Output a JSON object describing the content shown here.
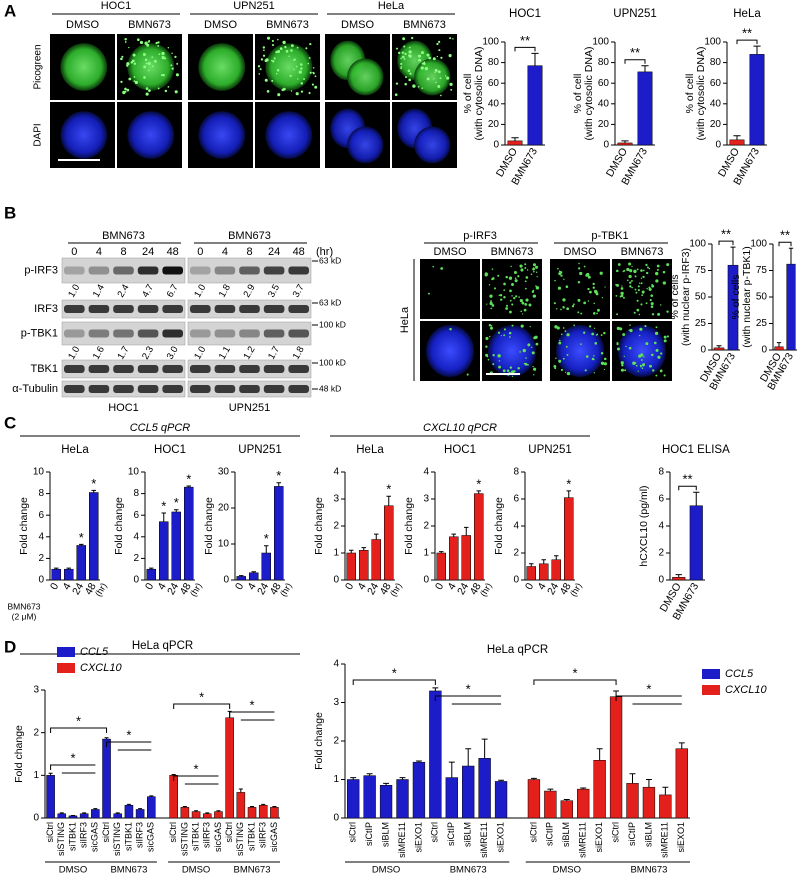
{
  "panel_labels": [
    "A",
    "B",
    "C",
    "D"
  ],
  "panel_a": {
    "cell_lines": [
      "HOC1",
      "UPN251",
      "HeLa"
    ],
    "treatments": [
      "DMSO",
      "BMN673"
    ],
    "stains": [
      "Picogreen",
      "DAPI"
    ]
  },
  "panel_b": {
    "blot": {
      "treatment": "BMN673",
      "timepoints": [
        "0",
        "4",
        "8",
        "24",
        "48"
      ],
      "unit": "(hr)",
      "cell_lines": [
        "HOC1",
        "UPN251"
      ],
      "proteins": [
        "p-IRF3",
        "IRF3",
        "p-TBK1",
        "TBK1",
        "α-Tubulin"
      ],
      "markers": [
        "63 kD",
        "63 kD",
        "100 kD",
        "100 kD",
        "48 kD"
      ],
      "p_irf3_quant": [
        [
          "1.0",
          "1.4",
          "2.4",
          "4.7",
          "6.7"
        ],
        [
          "1.0",
          "1.8",
          "2.9",
          "3.5",
          "3.7"
        ]
      ],
      "p_tbk1_quant": [
        [
          "1.0",
          "1.6",
          "1.7",
          "2.3",
          "3.0"
        ],
        [
          "1.0",
          "1.1",
          "1.2",
          "1.7",
          "1.8"
        ]
      ]
    },
    "images": {
      "stains": [
        "p-IRF3",
        "p-TBK1"
      ],
      "treatments": [
        "DMSO",
        "BMN673"
      ],
      "cell_line": "HeLa"
    }
  },
  "panel_c": {
    "headers": [
      "CCL5 qPCR",
      "CXCL10 qPCR"
    ]
  },
  "chart_data": [
    {
      "type": "bar",
      "title": "HOC1",
      "ylabel": [
        "% of cell",
        "(with cytosolic DNA)"
      ],
      "categories": [
        "DMSO",
        "BMN673"
      ],
      "values": [
        4,
        77
      ],
      "errors": [
        3,
        12
      ],
      "colors": [
        "#e3201b",
        "#1c1cc9"
      ],
      "ylim": [
        0,
        100
      ],
      "yticks": [
        0,
        20,
        40,
        60,
        80,
        100
      ],
      "annotation": "**"
    },
    {
      "type": "bar",
      "title": "UPN251",
      "ylabel": [
        "% of cell",
        "(with cytosolic DNA)"
      ],
      "categories": [
        "DMSO",
        "BMN673"
      ],
      "values": [
        2,
        71
      ],
      "errors": [
        2,
        6
      ],
      "colors": [
        "#e3201b",
        "#1c1cc9"
      ],
      "ylim": [
        0,
        100
      ],
      "yticks": [
        0,
        20,
        40,
        60,
        80,
        100
      ],
      "annotation": "**"
    },
    {
      "type": "bar",
      "title": "HeLa",
      "ylabel": [
        "% of cell",
        "(with cytosolic DNA)"
      ],
      "categories": [
        "DMSO",
        "BMN673"
      ],
      "values": [
        5,
        88
      ],
      "errors": [
        4,
        8
      ],
      "colors": [
        "#e3201b",
        "#1c1cc9"
      ],
      "ylim": [
        0,
        100
      ],
      "yticks": [
        0,
        20,
        40,
        60,
        80,
        100
      ],
      "annotation": "**"
    },
    {
      "type": "bar",
      "ylabel": [
        "% of cells",
        "(with nuclear p-IRF3)"
      ],
      "categories": [
        "DMSO",
        "BMN673"
      ],
      "values": [
        2,
        80
      ],
      "errors": [
        2,
        17
      ],
      "colors": [
        "#e3201b",
        "#1c1cc9"
      ],
      "ylim": [
        0,
        100
      ],
      "yticks": [
        0,
        25,
        50,
        75,
        100
      ],
      "annotation": "**"
    },
    {
      "type": "bar",
      "ylabel": [
        "% of cells",
        "(with nuclear p-TBK1)"
      ],
      "categories": [
        "DMSO",
        "BMN673"
      ],
      "values": [
        3,
        81
      ],
      "errors": [
        4,
        15
      ],
      "colors": [
        "#e3201b",
        "#1c1cc9"
      ],
      "ylim": [
        0,
        100
      ],
      "yticks": [
        0,
        25,
        50,
        75,
        100
      ],
      "annotation": "**"
    },
    {
      "type": "bar",
      "title": "HeLa",
      "ylabel": [
        "Fold change"
      ],
      "categories": [
        "0",
        "4",
        "24",
        "48"
      ],
      "values": [
        1,
        1,
        3.2,
        8.1
      ],
      "errors": [
        0.1,
        0.1,
        0.1,
        0.2
      ],
      "annotations": [
        null,
        null,
        "*",
        "*"
      ],
      "color": "#1c1cc9",
      "ylim": [
        0,
        10
      ],
      "yticks": [
        0,
        2,
        4,
        6,
        8,
        10
      ],
      "x_unit": "(hr)",
      "x_note": [
        "BMN673",
        "(2 μM)"
      ]
    },
    {
      "type": "bar",
      "title": "HOC1",
      "ylabel": [
        "Fold change"
      ],
      "categories": [
        "0",
        "4",
        "24",
        "48"
      ],
      "values": [
        1,
        5.4,
        6.3,
        8.6
      ],
      "errors": [
        0.1,
        0.8,
        0.2,
        0.1
      ],
      "annotations": [
        null,
        "*",
        "*",
        "*"
      ],
      "color": "#1c1cc9",
      "ylim": [
        0,
        10
      ],
      "yticks": [
        0,
        2,
        4,
        6,
        8,
        10
      ],
      "x_unit": "(hr)"
    },
    {
      "type": "bar",
      "title": "UPN251",
      "ylabel": [
        "Fold change"
      ],
      "categories": [
        "0",
        "4",
        "24",
        "48"
      ],
      "values": [
        1,
        2,
        7.5,
        26
      ],
      "errors": [
        0.2,
        0.3,
        2,
        1
      ],
      "annotations": [
        null,
        null,
        "*",
        "*"
      ],
      "color": "#1c1cc9",
      "ylim": [
        0,
        30
      ],
      "yticks": [
        0,
        10,
        20,
        30
      ],
      "x_unit": "(hr)"
    },
    {
      "type": "bar",
      "title": "HeLa",
      "ylabel": [
        "Fold change"
      ],
      "categories": [
        "0",
        "4",
        "24",
        "48"
      ],
      "values": [
        1,
        1.1,
        1.5,
        2.75
      ],
      "errors": [
        0.1,
        0.1,
        0.2,
        0.35
      ],
      "annotations": [
        null,
        null,
        null,
        "*"
      ],
      "color": "#e3201b",
      "ylim": [
        0,
        4
      ],
      "yticks": [
        0,
        1,
        2,
        3,
        4
      ],
      "x_unit": "(hr)"
    },
    {
      "type": "bar",
      "title": "HOC1",
      "ylabel": [
        "Fold change"
      ],
      "categories": [
        "0",
        "4",
        "24",
        "48"
      ],
      "values": [
        1,
        1.6,
        1.65,
        3.2
      ],
      "errors": [
        0.05,
        0.1,
        0.3,
        0.1
      ],
      "annotations": [
        null,
        null,
        null,
        "*"
      ],
      "color": "#e3201b",
      "ylim": [
        0,
        4
      ],
      "yticks": [
        0,
        1,
        2,
        3,
        4
      ],
      "x_unit": "(hr)"
    },
    {
      "type": "bar",
      "title": "UPN251",
      "ylabel": [
        "Fold change"
      ],
      "categories": [
        "0",
        "4",
        "24",
        "48"
      ],
      "values": [
        1,
        1.2,
        1.5,
        6.1
      ],
      "errors": [
        0.2,
        0.3,
        0.3,
        0.5
      ],
      "annotations": [
        null,
        null,
        null,
        "*"
      ],
      "color": "#e3201b",
      "ylim": [
        0,
        8
      ],
      "yticks": [
        0,
        2,
        4,
        6,
        8
      ],
      "x_unit": "(hr)"
    },
    {
      "type": "bar",
      "title": "HOC1  ELISA",
      "ylabel": [
        "hCXCL10 (pg/ml)"
      ],
      "categories": [
        "DMSO",
        "BMN673"
      ],
      "values": [
        0.2,
        5.5
      ],
      "errors": [
        0.2,
        1
      ],
      "colors": [
        "#e3201b",
        "#1c1cc9"
      ],
      "ylim": [
        0,
        8
      ],
      "yticks": [
        0,
        2,
        4,
        6,
        8
      ],
      "annotation": "**"
    },
    {
      "type": "bar",
      "title": "HeLa qPCR",
      "ylabel": [
        "Fold change"
      ],
      "legend": "upper left",
      "categories": [
        "siCtrl",
        "siSTING",
        "siTBK1",
        "siIRF3",
        "sicGAS",
        "siCtrl",
        "siSTING",
        "siTBK1",
        "siIRF3",
        "sicGAS"
      ],
      "groups": [
        "DMSO",
        "BMN673"
      ],
      "series": [
        {
          "name": "CCL5",
          "color": "#1c1cc9",
          "values": [
            1.0,
            0.1,
            0.05,
            0.1,
            0.2,
            1.85,
            0.1,
            0.3,
            0.2,
            0.5
          ],
          "errors": [
            0.05,
            0.02,
            0.01,
            0.02,
            0.02,
            0.03,
            0.02,
            0.02,
            0.02,
            0.02
          ]
        },
        {
          "name": "CXCL10",
          "color": "#e3201b",
          "values": [
            1.0,
            0.25,
            0.15,
            0.1,
            0.15,
            2.35,
            0.6,
            0.25,
            0.3,
            0.25
          ],
          "errors": [
            0.02,
            0.02,
            0.02,
            0.02,
            0.02,
            0.15,
            0.08,
            0.02,
            0.02,
            0.02
          ]
        }
      ],
      "brackets": [
        "*",
        "*",
        "*",
        "*",
        "*",
        "*"
      ],
      "ylim": [
        0,
        3
      ],
      "yticks": [
        0,
        1,
        2,
        3
      ]
    },
    {
      "type": "bar",
      "title": "HeLa qPCR",
      "ylabel": [
        "Fold change"
      ],
      "legend": "right",
      "categories": [
        "siCtrl",
        "siCtIP",
        "siBLM",
        "siMRE11",
        "siEXO1",
        "siCtrl",
        "siCtIP",
        "siBLM",
        "siMRE11",
        "siEXO1"
      ],
      "groups": [
        "DMSO",
        "BMN673"
      ],
      "series": [
        {
          "name": "CCL5",
          "color": "#1c1cc9",
          "values": [
            1.0,
            1.1,
            0.85,
            1.0,
            1.45,
            3.3,
            1.05,
            1.35,
            1.55,
            0.95
          ],
          "errors": [
            0.05,
            0.05,
            0.05,
            0.05,
            0.03,
            0.08,
            0.4,
            0.45,
            0.5,
            0.03
          ]
        },
        {
          "name": "CXCL10",
          "color": "#e3201b",
          "values": [
            1.0,
            0.7,
            0.45,
            0.75,
            1.5,
            3.15,
            0.9,
            0.8,
            0.6,
            1.8
          ],
          "errors": [
            0.03,
            0.05,
            0.03,
            0.03,
            0.3,
            0.15,
            0.25,
            0.2,
            0.2,
            0.15
          ]
        }
      ],
      "brackets": [
        "*",
        "*",
        "*",
        "*"
      ],
      "ylim": [
        0,
        4
      ],
      "yticks": [
        0,
        1,
        2,
        3,
        4
      ]
    }
  ]
}
